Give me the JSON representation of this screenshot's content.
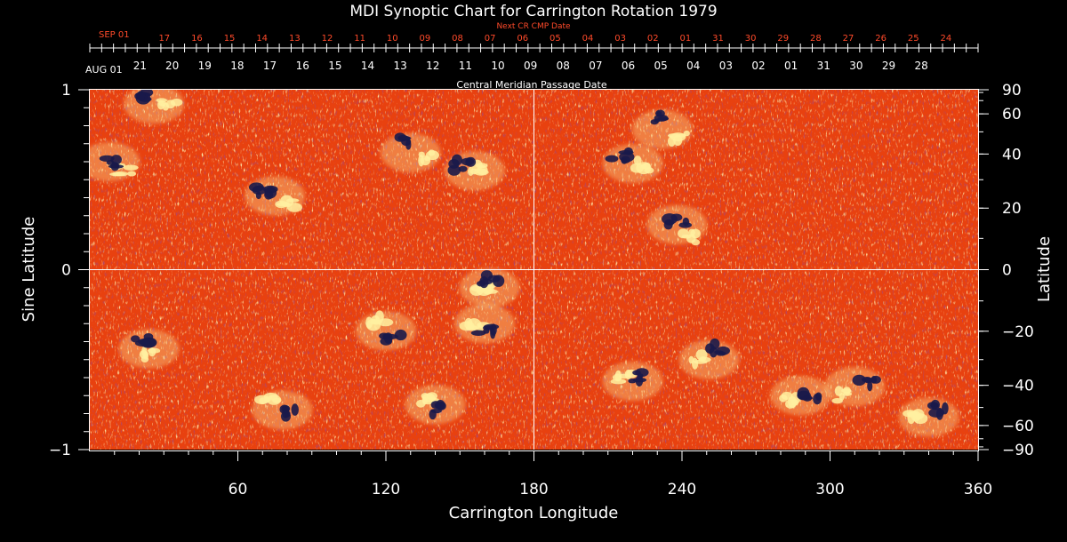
{
  "colors": {
    "background": "#000000",
    "foreground": "#ffffff",
    "next_cr_date_color": "#ff4a2a",
    "field_base": "#e8410f",
    "positive_polarity": "#fff0a0",
    "negative_polarity": "#1a1a4a"
  },
  "chart_data": {
    "type": "heatmap",
    "title": "MDI Synoptic Chart for Carrington Rotation 1979",
    "xlabel": "Carrington Longitude",
    "ylabel_left": "Sine Latitude",
    "ylabel_right": "Latitude",
    "xlim": [
      0,
      360
    ],
    "ylim": [
      -1,
      1
    ],
    "grid": "center lines at longitude 180 and sine latitude 0",
    "x_ticks": [
      60,
      120,
      180,
      240,
      300,
      360
    ],
    "y_left_ticks": [
      {
        "value": 1,
        "label": "1"
      },
      {
        "value": 0,
        "label": "0"
      },
      {
        "value": -1,
        "label": "−1"
      }
    ],
    "y_right_ticks": [
      {
        "deg": 90,
        "label": "90"
      },
      {
        "deg": 60,
        "label": "60"
      },
      {
        "deg": 40,
        "label": "40"
      },
      {
        "deg": 20,
        "label": "20"
      },
      {
        "deg": 0,
        "label": "0"
      },
      {
        "deg": -20,
        "label": "−20"
      },
      {
        "deg": -40,
        "label": "−40"
      },
      {
        "deg": -60,
        "label": "−60"
      },
      {
        "deg": -90,
        "label": "−90"
      }
    ],
    "cmp_axis": {
      "label": "Central Meridian Passage Date",
      "start_label": "AUG 01",
      "dates": [
        {
          "lon": 20.3,
          "label": "21"
        },
        {
          "lon": 33.4,
          "label": "20"
        },
        {
          "lon": 46.6,
          "label": "19"
        },
        {
          "lon": 59.8,
          "label": "18"
        },
        {
          "lon": 73.0,
          "label": "17"
        },
        {
          "lon": 86.2,
          "label": "16"
        },
        {
          "lon": 99.4,
          "label": "15"
        },
        {
          "lon": 112.6,
          "label": "14"
        },
        {
          "lon": 125.8,
          "label": "13"
        },
        {
          "lon": 139.0,
          "label": "12"
        },
        {
          "lon": 152.2,
          "label": "11"
        },
        {
          "lon": 165.4,
          "label": "10"
        },
        {
          "lon": 178.6,
          "label": "09"
        },
        {
          "lon": 191.8,
          "label": "08"
        },
        {
          "lon": 205.0,
          "label": "07"
        },
        {
          "lon": 218.2,
          "label": "06"
        },
        {
          "lon": 231.4,
          "label": "05"
        },
        {
          "lon": 244.6,
          "label": "04"
        },
        {
          "lon": 257.8,
          "label": "03"
        },
        {
          "lon": 271.0,
          "label": "02"
        },
        {
          "lon": 284.2,
          "label": "01"
        },
        {
          "lon": 297.4,
          "label": "31"
        },
        {
          "lon": 310.6,
          "label": "30"
        },
        {
          "lon": 323.8,
          "label": "29"
        },
        {
          "lon": 337.0,
          "label": "28"
        }
      ]
    },
    "next_cr_axis": {
      "label": "Next CR CMP Date",
      "start_label": "SEP 01",
      "dates": [
        {
          "lon": 30.2,
          "label": "17"
        },
        {
          "lon": 43.4,
          "label": "16"
        },
        {
          "lon": 56.6,
          "label": "15"
        },
        {
          "lon": 69.8,
          "label": "14"
        },
        {
          "lon": 83.0,
          "label": "13"
        },
        {
          "lon": 96.2,
          "label": "12"
        },
        {
          "lon": 109.4,
          "label": "11"
        },
        {
          "lon": 122.6,
          "label": "10"
        },
        {
          "lon": 135.8,
          "label": "09"
        },
        {
          "lon": 149.0,
          "label": "08"
        },
        {
          "lon": 162.2,
          "label": "07"
        },
        {
          "lon": 175.4,
          "label": "06"
        },
        {
          "lon": 188.6,
          "label": "05"
        },
        {
          "lon": 201.8,
          "label": "04"
        },
        {
          "lon": 215.0,
          "label": "03"
        },
        {
          "lon": 228.2,
          "label": "02"
        },
        {
          "lon": 241.4,
          "label": "01"
        },
        {
          "lon": 254.6,
          "label": "31"
        },
        {
          "lon": 267.8,
          "label": "30"
        },
        {
          "lon": 281.0,
          "label": "29"
        },
        {
          "lon": 294.2,
          "label": "28"
        },
        {
          "lon": 307.4,
          "label": "27"
        },
        {
          "lon": 320.6,
          "label": "26"
        },
        {
          "lon": 333.8,
          "label": "25"
        },
        {
          "lon": 347.0,
          "label": "24"
        }
      ]
    },
    "active_regions": [
      {
        "lon": 8,
        "sinlat": 0.6,
        "pos": [
          0.05,
          0.55
        ],
        "neg": [
          -0.01,
          0.6
        ]
      },
      {
        "lon": 26,
        "sinlat": 0.92,
        "pos": [
          0.05,
          0.92
        ],
        "neg": [
          -0.03,
          0.96
        ]
      },
      {
        "lon": 75,
        "sinlat": 0.41,
        "pos": [
          0.05,
          0.36
        ],
        "neg": [
          -0.04,
          0.43
        ]
      },
      {
        "lon": 130,
        "sinlat": 0.65,
        "pos": [
          0.05,
          0.62
        ],
        "neg": [
          -0.04,
          0.72
        ]
      },
      {
        "lon": 156,
        "sinlat": 0.55,
        "pos": [
          0.0,
          0.56
        ],
        "neg": [
          -0.04,
          0.58
        ]
      },
      {
        "lon": 232,
        "sinlat": 0.78,
        "pos": [
          0.06,
          0.74
        ],
        "neg": [
          -0.02,
          0.84
        ]
      },
      {
        "lon": 220,
        "sinlat": 0.59,
        "pos": [
          0.04,
          0.58
        ],
        "neg": [
          -0.04,
          0.63
        ]
      },
      {
        "lon": 238,
        "sinlat": 0.25,
        "pos": [
          0.04,
          0.18
        ],
        "neg": [
          0.0,
          0.27
        ]
      },
      {
        "lon": 24,
        "sinlat": -0.44,
        "pos": [
          0.0,
          -0.47
        ],
        "neg": [
          -0.03,
          -0.4
        ]
      },
      {
        "lon": 78,
        "sinlat": -0.78,
        "pos": [
          -0.04,
          -0.73
        ],
        "neg": [
          0.04,
          -0.8
        ]
      },
      {
        "lon": 120,
        "sinlat": -0.34,
        "pos": [
          -0.03,
          -0.28
        ],
        "neg": [
          0.02,
          -0.38
        ]
      },
      {
        "lon": 160,
        "sinlat": -0.3,
        "pos": [
          -0.03,
          -0.3
        ],
        "neg": [
          0.0,
          -0.33
        ]
      },
      {
        "lon": 162,
        "sinlat": -0.1,
        "pos": [
          -0.02,
          -0.1
        ],
        "neg": [
          0.0,
          -0.06
        ]
      },
      {
        "lon": 140,
        "sinlat": -0.75,
        "pos": [
          -0.04,
          -0.72
        ],
        "neg": [
          0.02,
          -0.78
        ]
      },
      {
        "lon": 220,
        "sinlat": -0.62,
        "pos": [
          -0.03,
          -0.6
        ],
        "neg": [
          0.01,
          -0.6
        ]
      },
      {
        "lon": 251,
        "sinlat": -0.5,
        "pos": [
          -0.04,
          -0.5
        ],
        "neg": [
          0.02,
          -0.44
        ]
      },
      {
        "lon": 288,
        "sinlat": -0.7,
        "pos": [
          -0.04,
          -0.73
        ],
        "neg": [
          0.03,
          -0.7
        ]
      },
      {
        "lon": 310,
        "sinlat": -0.65,
        "pos": [
          -0.05,
          -0.7
        ],
        "neg": [
          0.04,
          -0.62
        ]
      },
      {
        "lon": 340,
        "sinlat": -0.82,
        "pos": [
          -0.04,
          -0.82
        ],
        "neg": [
          0.03,
          -0.78
        ]
      }
    ]
  }
}
